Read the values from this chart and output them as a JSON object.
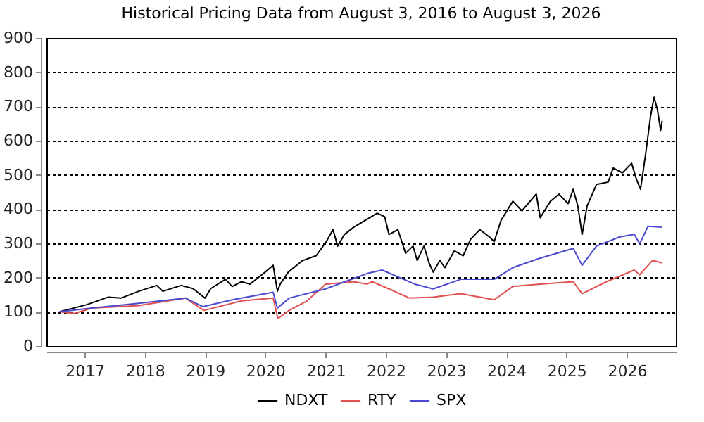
{
  "chart_data": {
    "type": "line",
    "title": "Historical Pricing Data from August 3, 2016 to August 3, 2026",
    "xlim": [
      "2016-05-15",
      "2026-10-25"
    ],
    "xticks": [
      {
        "value": "2017-01-01",
        "label": "2017"
      },
      {
        "value": "2018-01-01",
        "label": "2018"
      },
      {
        "value": "2019-01-01",
        "label": "2019"
      },
      {
        "value": "2020-01-01",
        "label": "2020"
      },
      {
        "value": "2021-01-01",
        "label": "2021"
      },
      {
        "value": "2022-01-01",
        "label": "2022"
      },
      {
        "value": "2023-01-01",
        "label": "2023"
      },
      {
        "value": "2024-01-01",
        "label": "2024"
      },
      {
        "value": "2025-01-01",
        "label": "2025"
      },
      {
        "value": "2026-01-01",
        "label": "2026"
      }
    ],
    "ylim": [
      0,
      900
    ],
    "yticks": [
      0,
      100,
      200,
      300,
      400,
      500,
      600,
      700,
      800,
      900
    ],
    "grid": "y",
    "legend": "bottom",
    "marker": "none",
    "line_style": "solid",
    "series": [
      {
        "name": "NDXT",
        "color": "#000000",
        "x": [
          "2016-08-03",
          "2017-01-15",
          "2017-05-25",
          "2017-08-10",
          "2017-11-25",
          "2018-03-15",
          "2018-04-20",
          "2018-08-10",
          "2018-10-20",
          "2019-01-01",
          "2019-02-05",
          "2019-05-05",
          "2019-06-15",
          "2019-08-10",
          "2019-10-01",
          "2020-01-01",
          "2020-02-18",
          "2020-03-15",
          "2020-04-01",
          "2020-05-20",
          "2020-08-15",
          "2020-11-05",
          "2021-01-05",
          "2021-02-15",
          "2021-03-15",
          "2021-04-25",
          "2021-06-20",
          "2021-09-01",
          "2021-11-10",
          "2021-12-25",
          "2022-01-20",
          "2022-03-15",
          "2022-05-01",
          "2022-06-15",
          "2022-07-10",
          "2022-08-20",
          "2022-09-20",
          "2022-10-15",
          "2022-11-25",
          "2022-12-25",
          "2023-02-20",
          "2023-04-15",
          "2023-05-30",
          "2023-07-25",
          "2023-09-20",
          "2023-10-20",
          "2023-12-01",
          "2024-02-10",
          "2024-04-05",
          "2024-07-01",
          "2024-07-25",
          "2024-09-25",
          "2024-11-15",
          "2025-01-10",
          "2025-02-10",
          "2025-03-10",
          "2025-04-05",
          "2025-05-05",
          "2025-07-01",
          "2025-09-10",
          "2025-10-10",
          "2025-12-05",
          "2026-01-30",
          "2026-03-01",
          "2026-03-25",
          "2026-04-25",
          "2026-05-25",
          "2026-06-15",
          "2026-07-05",
          "2026-07-25",
          "2026-08-03"
        ],
        "values": [
          100,
          121,
          143,
          140,
          160,
          177,
          160,
          177,
          168,
          140,
          168,
          195,
          174,
          188,
          181,
          216,
          236,
          160,
          181,
          216,
          250,
          264,
          305,
          340,
          292,
          326,
          347,
          368,
          388,
          378,
          326,
          340,
          271,
          292,
          250,
          292,
          243,
          216,
          250,
          229,
          278,
          264,
          312,
          340,
          319,
          305,
          368,
          423,
          395,
          444,
          375,
          423,
          444,
          416,
          458,
          409,
          326,
          409,
          472,
          479,
          520,
          506,
          534,
          486,
          458,
          561,
          672,
          727,
          692,
          630,
          658
        ]
      },
      {
        "name": "RTY",
        "color": "#e05050",
        "x": [
          "2016-08-03",
          "2016-10-30",
          "2017-02-15",
          "2017-11-25",
          "2018-09-05",
          "2018-12-25",
          "2019-08-10",
          "2020-02-18",
          "2020-03-18",
          "2020-05-25",
          "2020-09-10",
          "2021-01-01",
          "2021-06-20",
          "2021-09-10",
          "2021-10-10",
          "2022-01-20",
          "2022-05-25",
          "2022-10-15",
          "2023-04-01",
          "2023-10-20",
          "2024-02-10",
          "2024-07-25",
          "2025-02-10",
          "2025-04-05",
          "2025-08-30",
          "2026-02-15",
          "2026-03-20",
          "2026-06-05",
          "2026-08-03"
        ],
        "values": [
          100,
          95,
          111,
          118,
          140,
          104,
          132,
          140,
          80,
          104,
          132,
          181,
          188,
          181,
          188,
          167,
          140,
          143,
          153,
          135,
          174,
          181,
          188,
          153,
          188,
          222,
          208,
          250,
          243
        ]
      },
      {
        "name": "SPX",
        "color": "#4a4ad0",
        "x": [
          "2016-08-03",
          "2017-02-15",
          "2017-11-25",
          "2018-09-05",
          "2018-12-20",
          "2019-06-15",
          "2020-02-18",
          "2020-03-15",
          "2020-05-25",
          "2021-01-01",
          "2021-09-10",
          "2021-12-10",
          "2022-06-25",
          "2022-10-15",
          "2023-04-01",
          "2023-10-20",
          "2024-02-10",
          "2024-07-25",
          "2025-02-10",
          "2025-04-05",
          "2025-07-01",
          "2025-11-20",
          "2026-02-15",
          "2026-03-20",
          "2026-05-10",
          "2026-08-03"
        ],
        "values": [
          100,
          111,
          125,
          140,
          115,
          135,
          157,
          111,
          140,
          167,
          212,
          222,
          181,
          167,
          195,
          195,
          229,
          257,
          285,
          236,
          292,
          319,
          326,
          299,
          350,
          347
        ]
      }
    ]
  }
}
